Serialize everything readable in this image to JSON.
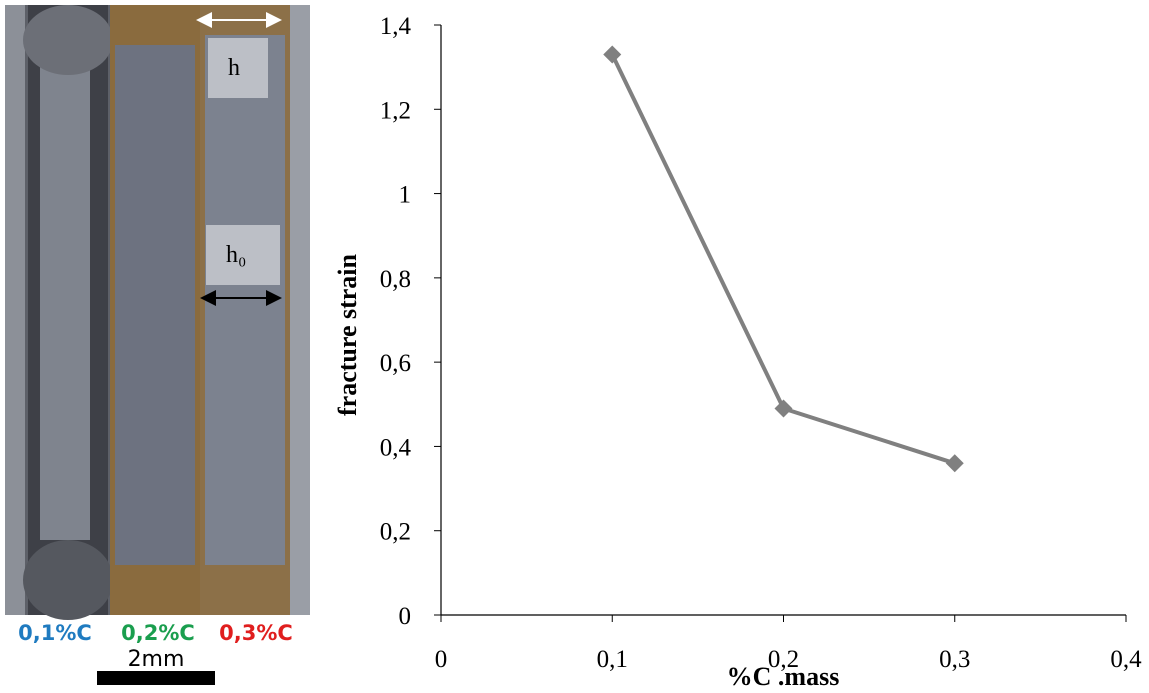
{
  "chart_data": {
    "type": "line",
    "x_label": "%C .mass",
    "y_label": "fracture strain",
    "x": [
      0.1,
      0.2,
      0.3
    ],
    "series": [
      {
        "name": "fracture strain",
        "color": "#808080",
        "values": [
          1.33,
          0.49,
          0.36
        ]
      }
    ],
    "xlim": [
      0,
      0.4
    ],
    "xticks": [
      0,
      {
        "value": 0.1,
        "label": "0,1"
      },
      {
        "value": 0.2,
        "label": "0,2"
      },
      {
        "value": 0.3,
        "label": "0,3"
      },
      {
        "value": 0.4,
        "label": "0,4"
      }
    ],
    "ylim": [
      0,
      1.4
    ],
    "yticks": [
      0,
      {
        "value": 0.2,
        "label": "0,2"
      },
      {
        "value": 0.4,
        "label": "0,4"
      },
      {
        "value": 0.6,
        "label": "0,6"
      },
      {
        "value": 0.8,
        "label": "0,8"
      },
      1,
      {
        "value": 1.2,
        "label": "1,2"
      },
      {
        "value": 1.4,
        "label": "1,4"
      }
    ],
    "grid": false
  },
  "photo": {
    "h_label": "h",
    "h0_label": "h₀",
    "samples": [
      "0,1%C",
      "0,2%C",
      "0,3%C"
    ],
    "scale_bar": "2mm"
  }
}
